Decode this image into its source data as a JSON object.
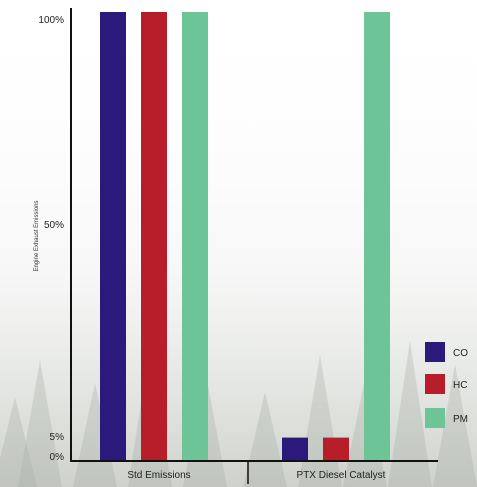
{
  "chart_data": {
    "type": "bar",
    "ylabel": "Engine Exhaust Emissions",
    "y_ticks": [
      "100%",
      "50%",
      "5%",
      "0%"
    ],
    "y_tick_values": [
      100,
      50,
      5,
      0
    ],
    "ylim": [
      0,
      100
    ],
    "categories": [
      "Std Emissions",
      "PTX Diesel Catalyst"
    ],
    "series": [
      {
        "name": "CO",
        "values": [
          100,
          5
        ],
        "color": "#2b1a7c"
      },
      {
        "name": "HC",
        "values": [
          100,
          5
        ],
        "color": "#b81d2a"
      },
      {
        "name": "PM",
        "values": [
          100,
          100
        ],
        "color": "#6cc497"
      }
    ],
    "legend_position": "right",
    "grid": false
  }
}
